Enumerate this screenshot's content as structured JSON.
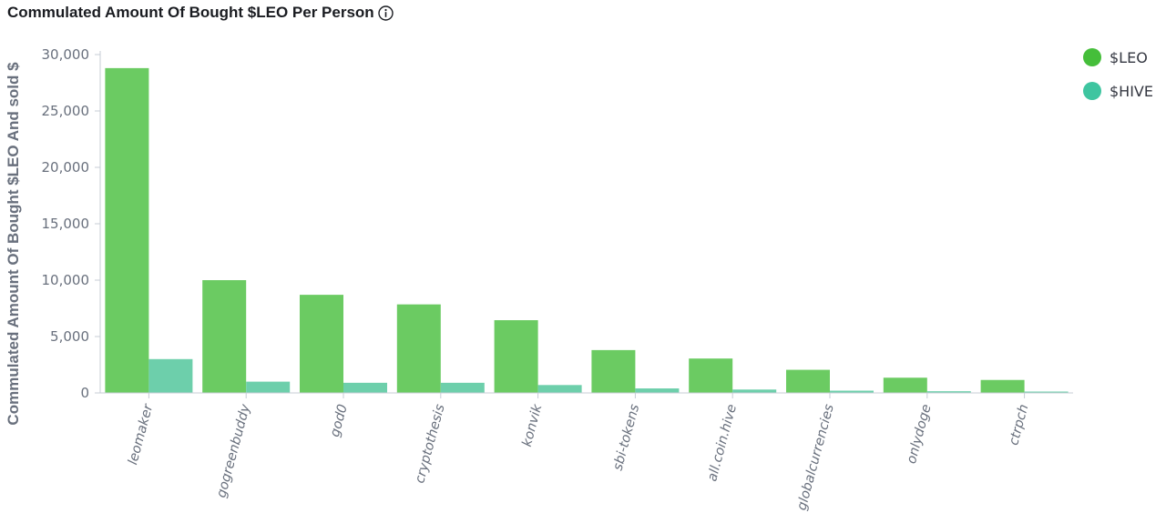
{
  "header": {
    "title": "Commulated Amount Of Bought $LEO Per Person",
    "info_icon": "info-circle-icon"
  },
  "colors": {
    "leo": "#6bcb62",
    "hive": "#6dcfab",
    "legend_leo": "#45be3a",
    "legend_hive": "#3ec5a0",
    "axis": "#c7ccd6",
    "text": "#69707d"
  },
  "chart_data": {
    "type": "bar",
    "title": "Commulated Amount Of Bought $LEO Per Person",
    "xlabel": "",
    "ylabel": "Commulated Amount Of Bought $LEO And sold $",
    "ylim": [
      0,
      30000
    ],
    "yticks": [
      0,
      5000,
      10000,
      15000,
      20000,
      25000,
      30000
    ],
    "ytick_labels": [
      "0",
      "5,000",
      "10,000",
      "15,000",
      "20,000",
      "25,000",
      "30,000"
    ],
    "grid": false,
    "legend_position": "top-right",
    "categories": [
      "leomaker",
      "gogreenbuddy",
      "god0",
      "cryptothesis",
      "konvik",
      "sbi-tokens",
      "all.coin.hive",
      "globalcurrencies",
      "onlydoge",
      "ctrpch"
    ],
    "series": [
      {
        "name": "$LEO",
        "values": [
          28800,
          10000,
          8700,
          7850,
          6450,
          3800,
          3050,
          2050,
          1350,
          1150
        ]
      },
      {
        "name": "$HIVE",
        "values": [
          3000,
          1000,
          900,
          900,
          700,
          400,
          300,
          200,
          150,
          120
        ]
      }
    ]
  }
}
